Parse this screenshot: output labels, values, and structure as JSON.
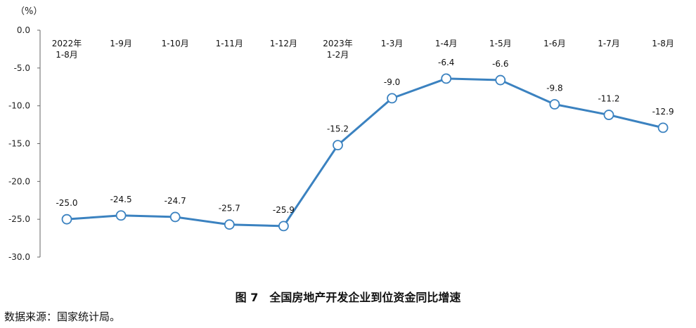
{
  "chart_data": {
    "type": "line",
    "unit": "（%）",
    "caption": "图 7　全国房地产开发企业到位资金同比增速",
    "categories": [
      [
        "2022年",
        "1-8月"
      ],
      [
        "1-9月"
      ],
      [
        "1-10月"
      ],
      [
        "1-11月"
      ],
      [
        "1-12月"
      ],
      [
        "2023年",
        "1-2月"
      ],
      [
        "1-3月"
      ],
      [
        "1-4月"
      ],
      [
        "1-5月"
      ],
      [
        "1-6月"
      ],
      [
        "1-7月"
      ],
      [
        "1-8月"
      ]
    ],
    "values": [
      -25.0,
      -24.5,
      -24.7,
      -25.7,
      -25.9,
      -15.2,
      -9.0,
      -6.4,
      -6.6,
      -9.8,
      -11.2,
      -12.9
    ],
    "value_labels": [
      "-25.0",
      "-24.5",
      "-24.7",
      "-25.7",
      "-25.9",
      "-15.2",
      "-9.0",
      "-6.4",
      "-6.6",
      "-9.8",
      "-11.2",
      "-12.9"
    ],
    "ylim": [
      -30,
      0
    ],
    "yticks": [
      "0.0",
      "-5.0",
      "-10.0",
      "-15.0",
      "-20.0",
      "-25.0",
      "-30.0"
    ],
    "ytick_values": [
      0,
      -5,
      -10,
      -15,
      -20,
      -25,
      -30
    ],
    "line_color": "#3b82c0",
    "grid": false
  },
  "source": "数据来源：国家统计局。"
}
